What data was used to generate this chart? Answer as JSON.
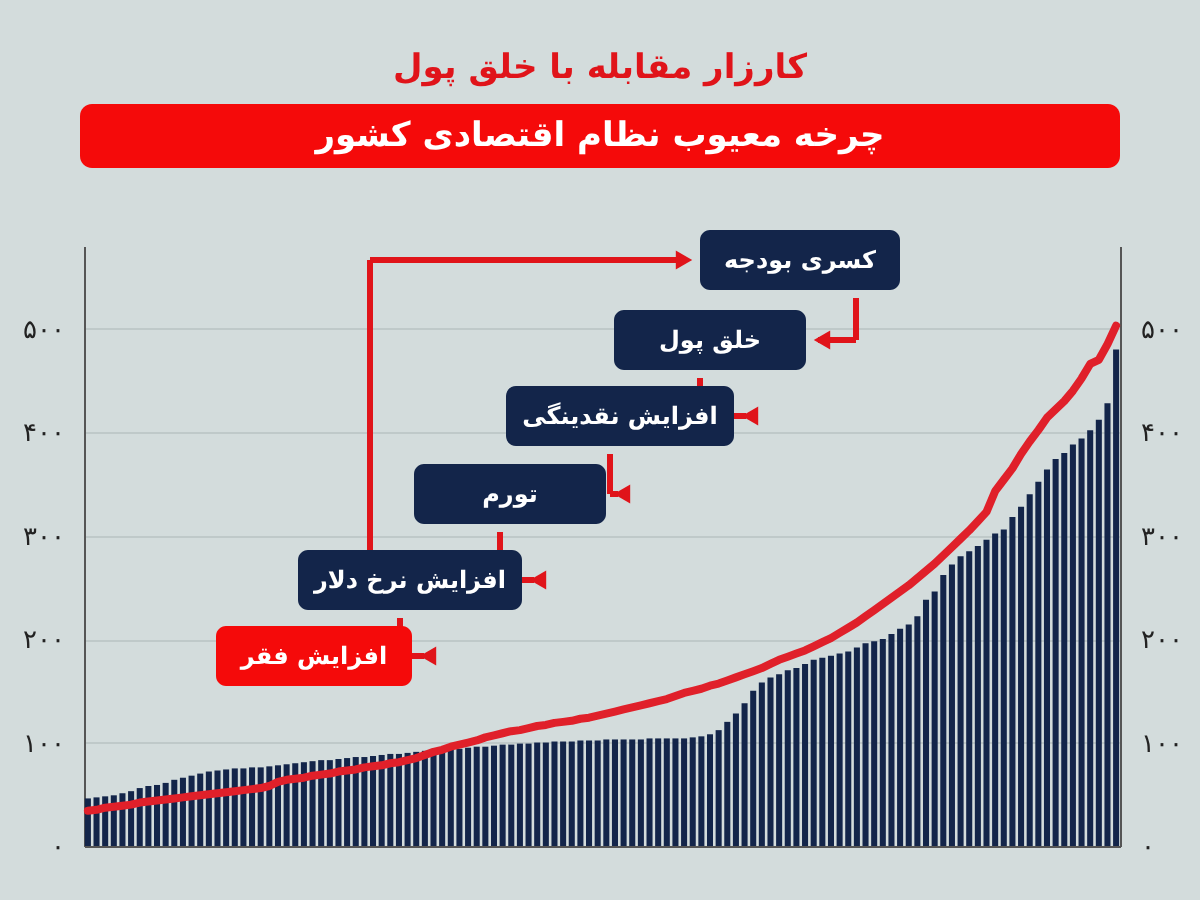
{
  "chart_data": {
    "type": "bar",
    "title": "کارزار مقابله با خلق پول",
    "subtitle": "چرخه معیوب نظام اقتصادی کشور",
    "annotations": [
      "کسری بودجه",
      "خلق پول",
      "افزایش نقدینگی",
      "تورم",
      "افزایش نرخ دلار",
      "افزایش فقر"
    ],
    "categories": [
      null,
      null,
      null,
      null,
      null,
      null,
      null,
      null,
      null,
      null,
      null,
      null,
      null,
      null,
      null,
      null,
      null,
      null,
      null,
      null,
      null,
      null,
      null,
      null,
      null,
      null,
      null,
      null,
      null,
      null,
      null,
      null,
      null,
      null,
      null,
      null,
      null,
      null,
      null,
      null,
      null,
      null,
      null,
      null,
      null,
      null,
      null,
      null,
      null,
      null,
      null,
      null,
      null,
      null,
      null,
      null,
      null,
      null,
      null,
      null,
      null,
      null,
      null,
      null,
      null,
      null,
      null,
      null,
      null,
      null,
      null,
      null,
      null,
      null,
      null,
      null,
      null,
      null,
      null,
      null,
      null,
      null,
      null,
      null,
      null,
      null,
      null,
      null,
      null,
      null,
      null,
      null,
      null,
      null,
      null,
      null,
      null,
      null,
      null,
      null,
      null,
      null,
      null,
      null,
      null,
      null,
      null,
      null,
      null,
      null,
      null,
      null,
      null,
      null,
      null,
      null,
      null,
      null,
      null,
      null
    ],
    "series": [
      {
        "color": "#13254a",
        "values": [
          46,
          47,
          48,
          49,
          51,
          53,
          56,
          58,
          59,
          61,
          64,
          66,
          68,
          70,
          72,
          73,
          74,
          75,
          75,
          76,
          76,
          77,
          78,
          79,
          80,
          81,
          82,
          83,
          83,
          84,
          85,
          86,
          86,
          87,
          88,
          89,
          89,
          90,
          91,
          92,
          92,
          93,
          94,
          94,
          95,
          96,
          96,
          97,
          98,
          98,
          99,
          99,
          100,
          100,
          101,
          101,
          101,
          102,
          102,
          102,
          103,
          103,
          103,
          103,
          103,
          104,
          104,
          104,
          104,
          104,
          105,
          106,
          108,
          112,
          120,
          128,
          138,
          150,
          158,
          163,
          166,
          170,
          172,
          176,
          180,
          182,
          184,
          186,
          188,
          192,
          196,
          198,
          200,
          205,
          210,
          214,
          222,
          238,
          246,
          262,
          272,
          280,
          285,
          290,
          296,
          302,
          306,
          318,
          328,
          340,
          352,
          364,
          374,
          380,
          388,
          394,
          402,
          412,
          428,
          480
        ]
      },
      {
        "type": "line",
        "color": "#e0202a",
        "axis": "y2",
        "values": [
          34,
          35,
          37,
          38,
          39,
          40,
          42,
          43,
          44,
          45,
          46,
          47,
          48,
          49,
          50,
          51,
          52,
          53,
          54,
          55,
          56,
          58,
          62,
          64,
          65,
          66,
          68,
          69,
          70,
          72,
          73,
          74,
          76,
          77,
          78,
          80,
          81,
          83,
          85,
          88,
          91,
          93,
          96,
          98,
          100,
          102,
          105,
          107,
          109,
          111,
          112,
          114,
          116,
          117,
          119,
          120,
          121,
          123,
          124,
          126,
          128,
          130,
          132,
          134,
          136,
          138,
          140,
          142,
          145,
          148,
          150,
          152,
          155,
          157,
          160,
          163,
          166,
          169,
          172,
          176,
          180,
          183,
          186,
          189,
          193,
          197,
          201,
          206,
          211,
          216,
          222,
          228,
          234,
          240,
          246,
          252,
          259,
          266,
          273,
          281,
          289,
          297,
          305,
          314,
          323,
          343,
          354,
          365,
          379,
          391,
          402,
          414,
          422,
          430,
          440,
          452,
          466,
          470,
          485,
          503
        ]
      }
    ],
    "ylim": [
      0,
      580
    ],
    "yticks": [
      {
        "value": 0,
        "label": "۰"
      },
      {
        "value": 100,
        "label": "۱۰۰"
      },
      {
        "value": 200,
        "label": "۲۰۰"
      },
      {
        "value": 300,
        "label": "۳۰۰"
      },
      {
        "value": 400,
        "label": "۴۰۰"
      },
      {
        "value": 500,
        "label": "۵۰۰"
      }
    ],
    "y2lim": [
      0,
      580
    ],
    "y2ticks": [
      {
        "value": 0,
        "label": "۰"
      },
      {
        "value": 100,
        "label": "۱۰۰"
      },
      {
        "value": 200,
        "label": "۲۰۰"
      },
      {
        "value": 300,
        "label": "۳۰۰"
      },
      {
        "value": 400,
        "label": "۴۰۰"
      },
      {
        "value": 500,
        "label": "۵۰۰"
      }
    ],
    "grid": "y"
  }
}
